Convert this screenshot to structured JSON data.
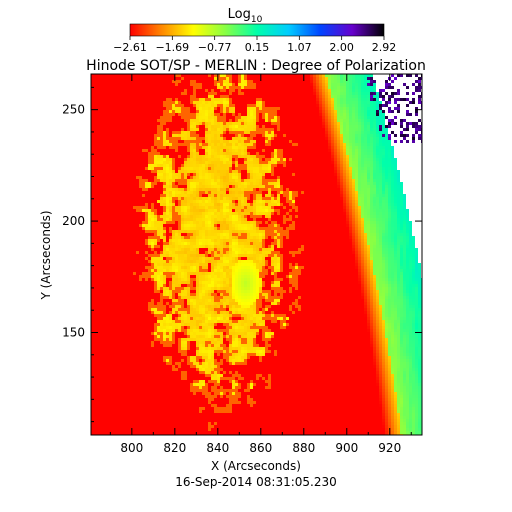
{
  "chart_data": {
    "type": "heatmap",
    "title": "Hinode SOT/SP - MERLIN : Degree of Polarization",
    "subtitle": "16-Sep-2014 08:31:05.230",
    "xlabel": "X (Arcseconds)",
    "ylabel": "Y (Arcseconds)",
    "xlim": [
      781,
      935
    ],
    "ylim": [
      104,
      266
    ],
    "xticks": [
      800,
      820,
      840,
      860,
      880,
      900,
      920
    ],
    "yticks": [
      150,
      200,
      250
    ],
    "colorbar": {
      "title_base": "Log",
      "title_sub": "10",
      "range": [
        -2.61,
        2.92
      ],
      "tick_labels": [
        "−2.61",
        "−1.69",
        "−0.77",
        "0.15",
        "1.07",
        "2.00",
        "2.92"
      ],
      "colormap": [
        "#ff0000",
        "#ff8800",
        "#ffff00",
        "#88ff44",
        "#00ffaa",
        "#00ccff",
        "#0044ff",
        "#6600cc",
        "#000000"
      ]
    },
    "features": {
      "background_level": -2.6,
      "bright_patch_level": -1.3,
      "bright_patch_center": [
        853,
        172
      ],
      "limb_band_level": 0.2,
      "off_disk_level": 2.8
    }
  }
}
